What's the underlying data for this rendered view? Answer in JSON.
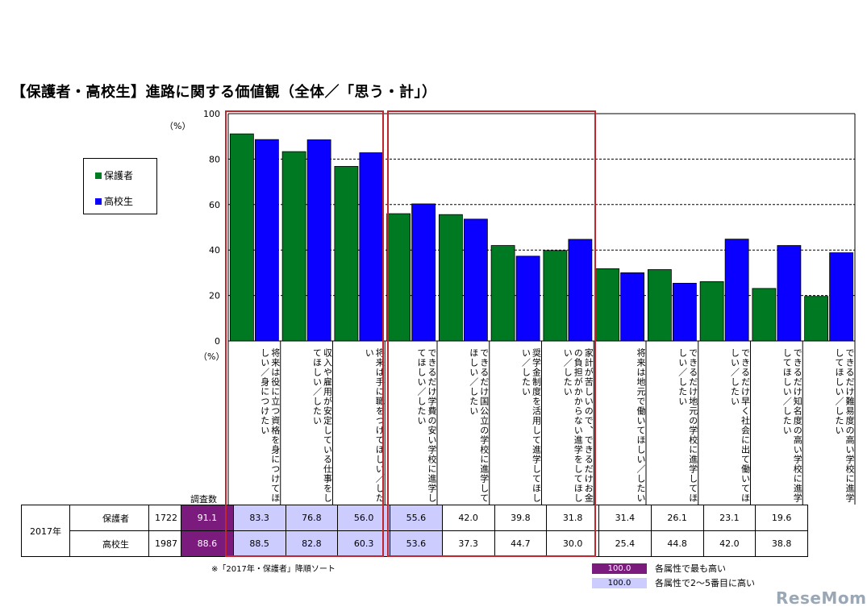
{
  "title": "【保護者・高校生】進路に関する価値観（全体／「思う・計」）",
  "unit_top": "（%）",
  "unit_mid": "（%）",
  "sample_header": "調査数",
  "year_label": "2017年",
  "note": "※「2017年・保護者」降順ソート",
  "key": [
    {
      "value": "100.0",
      "label": "各属性で最も高い",
      "color": "#7b1b7e",
      "text_color": "#ffffff"
    },
    {
      "value": "100.0",
      "label": "各属性で2～5番目に高い",
      "color": "#ccccff",
      "text_color": "#000000"
    }
  ],
  "watermark": "ReseMom",
  "colors": {
    "parent": "#007a22",
    "student": "#0a00ff",
    "highlight": "#c0262d"
  },
  "chart_data": {
    "type": "bar",
    "ylim": [
      0,
      100
    ],
    "yticks": [
      "0",
      "20",
      "40",
      "60",
      "80",
      "100"
    ],
    "categories": [
      "将来は役に立つ資格を身につけてほしい／身につけたい",
      "収入や雇用が安定している仕事をしてほしい／したい",
      "将来は手に職をつけてほしい／したい",
      "できるだけ学費の安い学校に進学してほしい／したい",
      "できるだけ国公立の学校に進学してほしい／したい",
      "奨学金制度を活用して進学してほしい／したい",
      "家計が苦しいので、できるだけお金の負担がかからない進学をしてほしい／したい",
      "将来は地元で働いてほしい／したい",
      "できるだけ地元の学校に進学してほしい／したい",
      "できるだけ早く社会に出て働いてほしい／したい",
      "できるだけ知名度の高い学校に進学してほしい／したい",
      "できるだけ難易度の高い学校に進学してほしい／したい"
    ],
    "series": [
      {
        "name": "保護者",
        "n": "1722",
        "values": [
          91.1,
          83.3,
          76.8,
          56.0,
          55.6,
          42.0,
          39.8,
          31.8,
          31.4,
          26.1,
          23.1,
          19.6
        ],
        "labels": [
          "91.1",
          "83.3",
          "76.8",
          "56.0",
          "55.6",
          "42.0",
          "39.8",
          "31.8",
          "31.4",
          "26.1",
          "23.1",
          "19.6"
        ],
        "rank": [
          "top",
          "high",
          "high",
          "high",
          "high",
          "",
          "",
          "",
          "",
          "",
          "",
          ""
        ]
      },
      {
        "name": "高校生",
        "n": "1987",
        "values": [
          88.6,
          88.5,
          82.8,
          60.3,
          53.6,
          37.3,
          44.7,
          30.0,
          25.4,
          44.8,
          42.0,
          38.8
        ],
        "labels": [
          "88.6",
          "88.5",
          "82.8",
          "60.3",
          "53.6",
          "37.3",
          "44.7",
          "30.0",
          "25.4",
          "44.8",
          "42.0",
          "38.8"
        ],
        "rank": [
          "top",
          "high",
          "high",
          "high",
          "high",
          "",
          "",
          "",
          "",
          "",
          "",
          ""
        ]
      }
    ]
  }
}
